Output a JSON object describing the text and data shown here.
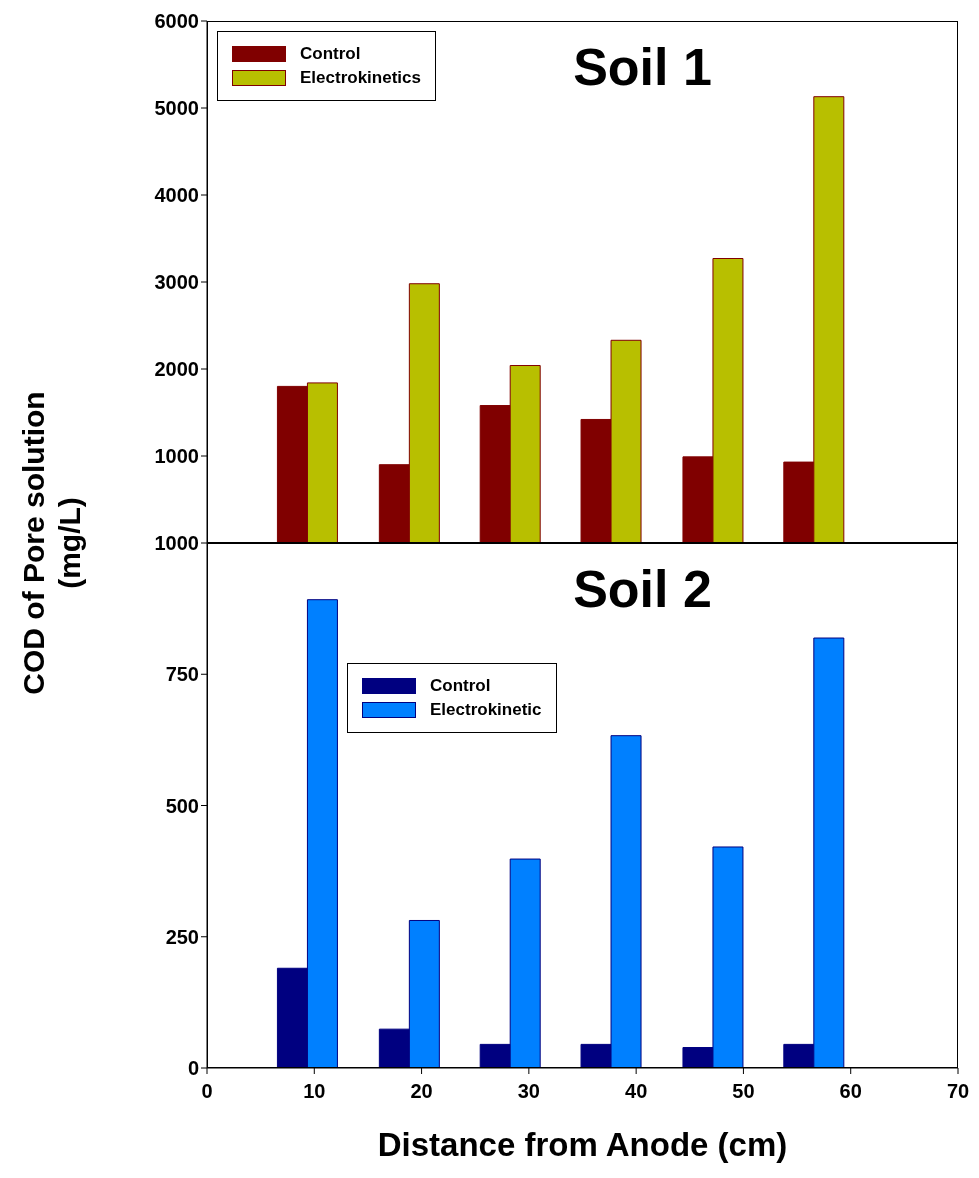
{
  "chart_data": [
    {
      "type": "bar",
      "title": "Soil 1",
      "ylabel": "COD of Pore solution (mg/L)",
      "x": [
        9.4,
        18.9,
        28.3,
        37.7,
        47.2,
        56.6
      ],
      "series": [
        {
          "name": "Control",
          "color": "#800000",
          "values": [
            1800,
            900,
            1580,
            1420,
            990,
            930
          ]
        },
        {
          "name": "Electrokinetics",
          "color": "#b8bf00",
          "values": [
            1840,
            2980,
            2040,
            2330,
            3270,
            5130
          ]
        }
      ],
      "xlim": [
        0,
        70
      ],
      "xticks": [
        0,
        10,
        20,
        30,
        40,
        50,
        60,
        70
      ],
      "ylim": [
        0,
        6000
      ],
      "yticks": [
        1000,
        2000,
        3000,
        4000,
        5000,
        6000
      ],
      "tick_labels": "y",
      "grid": false,
      "legend": "top left"
    },
    {
      "type": "bar",
      "title": "Soil 2",
      "xlabel": "Distance from Anode (cm)",
      "x": [
        9.4,
        18.9,
        28.3,
        37.7,
        47.2,
        56.6
      ],
      "series": [
        {
          "name": "Control",
          "color": "#000080",
          "values": [
            190,
            74,
            45,
            45,
            39,
            45
          ]
        },
        {
          "name": "Electrokinetic",
          "color": "#0080ff",
          "values": [
            892,
            281,
            398,
            633,
            421,
            819
          ]
        }
      ],
      "xlim": [
        0,
        70
      ],
      "xticks": [
        0,
        10,
        20,
        30,
        40,
        50,
        60,
        70
      ],
      "ylim": [
        0,
        1000
      ],
      "yticks": [
        0,
        250,
        500,
        750,
        1000
      ],
      "grid": false,
      "legend": "top left"
    }
  ]
}
